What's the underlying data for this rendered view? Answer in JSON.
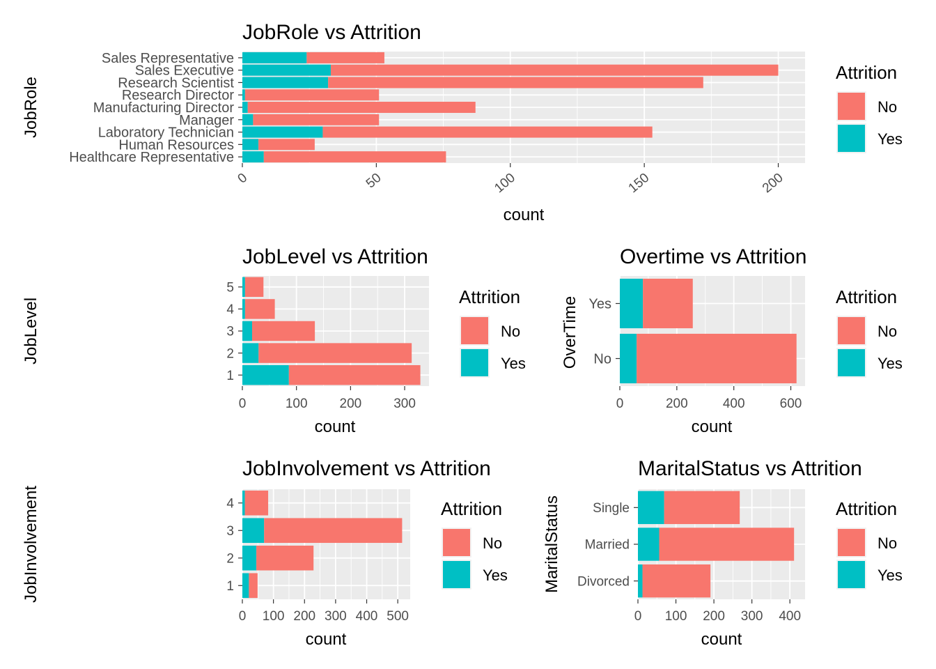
{
  "legend_common": {
    "title": "Attrition",
    "items": [
      {
        "label": "No",
        "color": "#F8766D"
      },
      {
        "label": "Yes",
        "color": "#00BFC4"
      }
    ]
  },
  "chart_data": [
    {
      "id": "jobrole",
      "type": "bar",
      "orientation": "horizontal",
      "stacked": true,
      "title": "JobRole vs Attrition",
      "xlabel": "count",
      "ylabel": "JobRole",
      "categories": [
        "Healthcare Representative",
        "Human Resources",
        "Laboratory Technician",
        "Manager",
        "Manufacturing Director",
        "Research Director",
        "Research Scientist",
        "Sales Executive",
        "Sales Representative"
      ],
      "series": [
        {
          "name": "Yes",
          "values": [
            8,
            6,
            30,
            4,
            2,
            1,
            32,
            33,
            24
          ]
        },
        {
          "name": "No",
          "values": [
            68,
            21,
            123,
            47,
            85,
            50,
            140,
            167,
            29
          ]
        }
      ],
      "xlim": [
        0,
        210
      ],
      "xticks": [
        "0",
        "50",
        "100",
        "150",
        "200"
      ],
      "xtick_values": [
        0,
        50,
        100,
        150,
        200
      ],
      "xtick_angle": 40,
      "grid": true,
      "legend": "right"
    },
    {
      "id": "joblevel",
      "type": "bar",
      "orientation": "horizontal",
      "stacked": true,
      "title": "JobLevel vs Attrition",
      "xlabel": "count",
      "ylabel": "JobLevel",
      "categories": [
        "1",
        "2",
        "3",
        "4",
        "5"
      ],
      "series": [
        {
          "name": "Yes",
          "values": [
            86,
            30,
            18,
            5,
            5
          ]
        },
        {
          "name": "No",
          "values": [
            243,
            283,
            116,
            55,
            34
          ]
        }
      ],
      "xlim": [
        0,
        345
      ],
      "xticks": [
        "0",
        "100",
        "200",
        "300"
      ],
      "xtick_values": [
        0,
        100,
        200,
        300
      ],
      "grid": true,
      "legend": "right"
    },
    {
      "id": "overtime",
      "type": "bar",
      "orientation": "horizontal",
      "stacked": true,
      "title": "Overtime vs Attrition",
      "xlabel": "count",
      "ylabel": "OverTime",
      "categories": [
        "No",
        "Yes"
      ],
      "series": [
        {
          "name": "Yes",
          "values": [
            59,
            81
          ]
        },
        {
          "name": "No",
          "values": [
            561,
            175
          ]
        }
      ],
      "xlim": [
        0,
        650
      ],
      "xticks": [
        "0",
        "200",
        "400",
        "600"
      ],
      "xtick_values": [
        0,
        200,
        400,
        600
      ],
      "grid": true,
      "legend": "right"
    },
    {
      "id": "jobinvolvement",
      "type": "bar",
      "orientation": "horizontal",
      "stacked": true,
      "title": "JobInvolvement vs Attrition",
      "xlabel": "count",
      "ylabel": "JobInvolvement",
      "categories": [
        "1",
        "2",
        "3",
        "4"
      ],
      "series": [
        {
          "name": "Yes",
          "values": [
            21,
            45,
            70,
            8
          ]
        },
        {
          "name": "No",
          "values": [
            28,
            184,
            444,
            75
          ]
        }
      ],
      "xlim": [
        0,
        540
      ],
      "xticks": [
        "0",
        "100",
        "200",
        "300",
        "400",
        "500"
      ],
      "xtick_values": [
        0,
        100,
        200,
        300,
        400,
        500
      ],
      "grid": true,
      "legend": "right"
    },
    {
      "id": "maritalstatus",
      "type": "bar",
      "orientation": "horizontal",
      "stacked": true,
      "title": "MaritalStatus vs Attrition",
      "xlabel": "count",
      "ylabel": "MaritalStatus",
      "categories": [
        "Divorced",
        "Married",
        "Single"
      ],
      "series": [
        {
          "name": "Yes",
          "values": [
            12,
            56,
            69
          ]
        },
        {
          "name": "No",
          "values": [
            179,
            355,
            199
          ]
        }
      ],
      "xlim": [
        0,
        440
      ],
      "xticks": [
        "0",
        "100",
        "200",
        "300",
        "400"
      ],
      "xtick_values": [
        0,
        100,
        200,
        300,
        400
      ],
      "grid": true,
      "legend": "right"
    }
  ]
}
